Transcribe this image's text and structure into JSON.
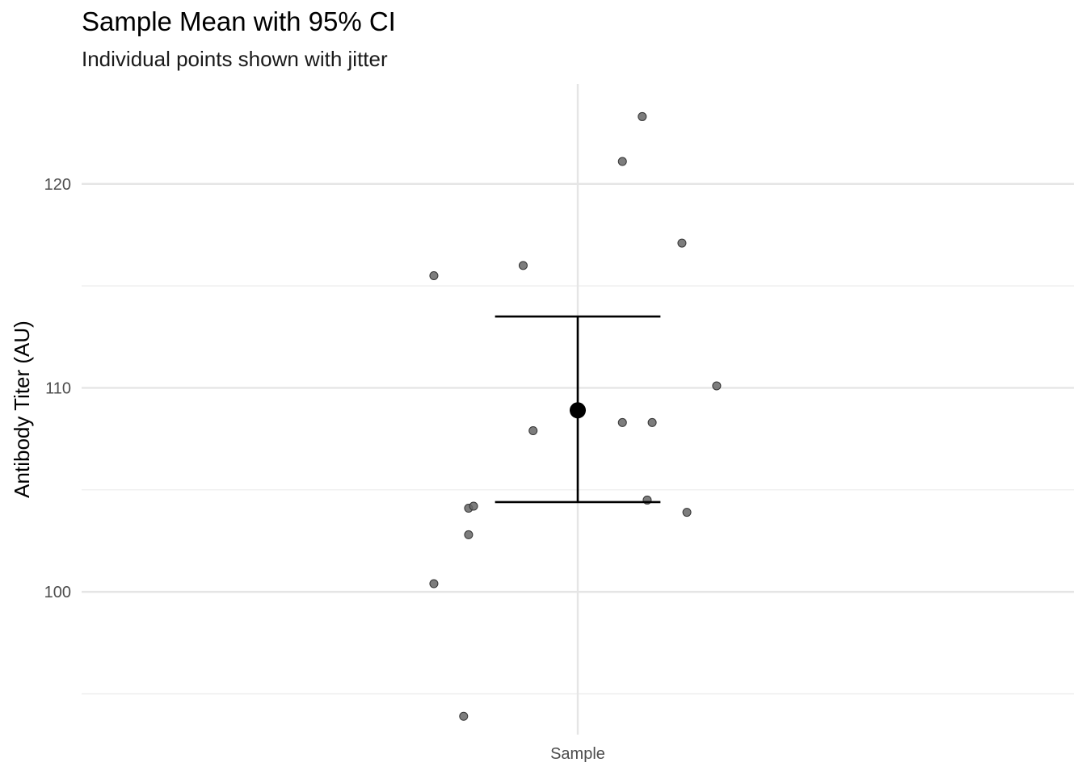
{
  "chart_data": {
    "type": "scatter",
    "title": "Sample Mean with 95% CI",
    "subtitle": "Individual points shown with jitter",
    "xlabel": "",
    "ylabel": "Antibody Titer (AU)",
    "categories": [
      "Sample"
    ],
    "y_ticks": [
      100,
      110,
      120
    ],
    "ylim": [
      93.0,
      124.9
    ],
    "grid": true,
    "points": {
      "color": "#666666",
      "jitter_offsets": [
        -0.29,
        -0.22,
        -0.22,
        -0.11,
        0.09,
        0.13,
        0.15,
        0.21,
        -0.29,
        -0.09,
        0.09,
        0.14,
        0.22,
        0.28,
        -0.21,
        -0.23
      ],
      "values": [
        115.5,
        104.1,
        102.8,
        116.0,
        121.1,
        123.3,
        108.3,
        117.1,
        100.4,
        107.9,
        108.3,
        104.5,
        103.9,
        110.1,
        104.2,
        93.9
      ]
    },
    "mean": 108.9,
    "ci": [
      104.4,
      113.5
    ],
    "mean_color": "#000000"
  }
}
